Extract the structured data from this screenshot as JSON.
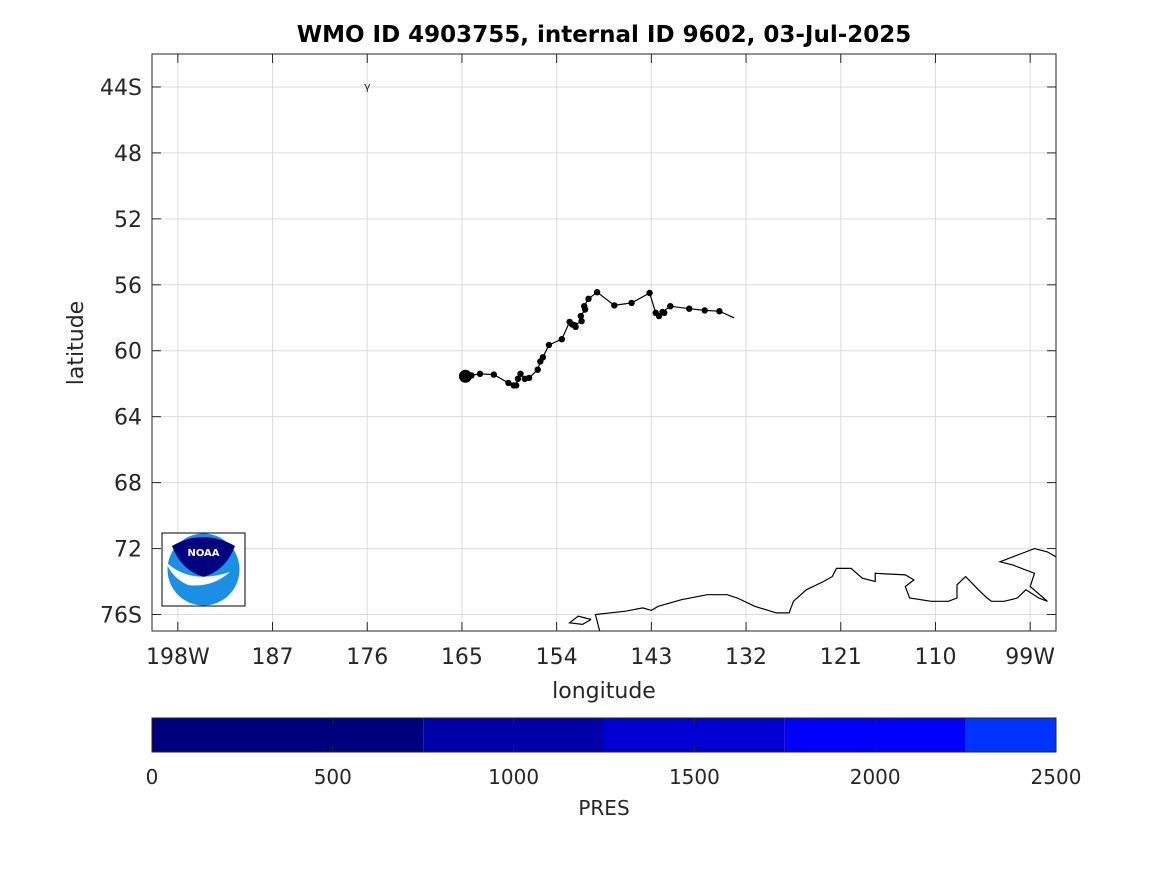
{
  "map": {
    "title": "WMO ID 4903755, internal ID 9602, 03-Jul-2025",
    "xlabel": "longitude",
    "ylabel": "latitude",
    "x_ticks": [
      {
        "value": -198,
        "label": "198W"
      },
      {
        "value": -187,
        "label": "187"
      },
      {
        "value": -176,
        "label": "176"
      },
      {
        "value": -165,
        "label": "165"
      },
      {
        "value": -154,
        "label": "154"
      },
      {
        "value": -143,
        "label": "143"
      },
      {
        "value": -132,
        "label": "132"
      },
      {
        "value": -121,
        "label": "121"
      },
      {
        "value": -110,
        "label": "110"
      },
      {
        "value": -99,
        "label": "99W"
      }
    ],
    "y_ticks": [
      {
        "value": -44,
        "label": "44S"
      },
      {
        "value": -48,
        "label": "48"
      },
      {
        "value": -52,
        "label": "52"
      },
      {
        "value": -56,
        "label": "56"
      },
      {
        "value": -60,
        "label": "60"
      },
      {
        "value": -64,
        "label": "64"
      },
      {
        "value": -68,
        "label": "68"
      },
      {
        "value": -72,
        "label": "72"
      },
      {
        "value": -76,
        "label": "76S"
      }
    ],
    "xlim": [
      -201,
      -96
    ],
    "ylim": [
      -77,
      -42
    ],
    "grid": true,
    "logo_text": "NOAA",
    "track_color": "#000000",
    "coast_color": "#000000"
  },
  "colorbar": {
    "label": "PRES",
    "ticks": [
      {
        "value": 0,
        "label": "0"
      },
      {
        "value": 500,
        "label": "500"
      },
      {
        "value": 1000,
        "label": "1000"
      },
      {
        "value": 1500,
        "label": "1500"
      },
      {
        "value": 2000,
        "label": "2000"
      },
      {
        "value": 2500,
        "label": "2500"
      }
    ],
    "range": [
      0,
      2500
    ],
    "segments": [
      {
        "from": 0,
        "to": 750,
        "color": "#00007f"
      },
      {
        "from": 750,
        "to": 1250,
        "color": "#0000a8"
      },
      {
        "from": 1250,
        "to": 1750,
        "color": "#0000d2"
      },
      {
        "from": 1750,
        "to": 2250,
        "color": "#0000fc"
      },
      {
        "from": 2250,
        "to": 2500,
        "color": "#0033ff"
      }
    ]
  },
  "chart_data": {
    "type": "scatter",
    "title": "WMO ID 4903755, internal ID 9602, 03-Jul-2025",
    "xlabel": "longitude",
    "ylabel": "latitude",
    "xlim": [
      -201,
      -96
    ],
    "ylim": [
      -77,
      -42
    ],
    "grid": true,
    "track": {
      "lon": [
        -164.6,
        -163.9,
        -162.9,
        -161.3,
        -159.6,
        -159.0,
        -158.7,
        -158.5,
        -158.2,
        -157.7,
        -157.2,
        -156.2,
        -155.9,
        -155.6,
        -154.9,
        -153.4,
        -152.5,
        -152.2,
        -151.8,
        -151.9,
        -151.1,
        -151.2,
        -150.7,
        -150.8,
        -150.3,
        -149.3,
        -147.3,
        -145.3,
        -143.2,
        -142.5,
        -142.1,
        -141.5,
        -141.7,
        -140.8,
        -138.6,
        -136.8,
        -135.1,
        -133.4
      ],
      "lat": [
        -61.55,
        -61.5,
        -61.4,
        -61.45,
        -61.95,
        -62.1,
        -62.1,
        -61.7,
        -61.4,
        -61.7,
        -61.65,
        -61.15,
        -60.65,
        -60.4,
        -59.65,
        -59.3,
        -58.25,
        -58.4,
        -58.55,
        -58.45,
        -58.2,
        -57.9,
        -57.5,
        -57.3,
        -56.85,
        -56.45,
        -57.25,
        -57.1,
        -56.5,
        -57.7,
        -57.9,
        -57.7,
        -57.65,
        -57.3,
        -57.45,
        -57.55,
        -57.6,
        -58.0
      ],
      "start": {
        "lon": -164.6,
        "lat": -61.55
      },
      "end_has_marker": false
    },
    "outlier": {
      "lon": -176.0,
      "lat": -44.0,
      "symbol": "γ"
    },
    "coastline": [
      [
        [
          -149.0,
          -77.0
        ],
        [
          -149.5,
          -76.0
        ],
        [
          -146.0,
          -75.8
        ],
        [
          -144.0,
          -75.6
        ],
        [
          -143.0,
          -75.75
        ],
        [
          -142.2,
          -75.5
        ],
        [
          -139.5,
          -75.1
        ],
        [
          -136.5,
          -74.8
        ],
        [
          -134.2,
          -74.8
        ],
        [
          -133.0,
          -75.0
        ],
        [
          -131.0,
          -75.5
        ],
        [
          -128.5,
          -75.9
        ],
        [
          -127.0,
          -75.9
        ],
        [
          -126.5,
          -75.2
        ],
        [
          -125.0,
          -74.5
        ],
        [
          -123.0,
          -74.0
        ],
        [
          -122.0,
          -73.7
        ],
        [
          -121.5,
          -73.2
        ],
        [
          -119.8,
          -73.2
        ],
        [
          -118.5,
          -73.8
        ],
        [
          -117.0,
          -74.0
        ],
        [
          -117.0,
          -73.5
        ],
        [
          -113.5,
          -73.6
        ],
        [
          -112.5,
          -73.9
        ],
        [
          -113.5,
          -74.3
        ],
        [
          -113.0,
          -75.0
        ],
        [
          -110.5,
          -75.2
        ],
        [
          -108.5,
          -75.2
        ],
        [
          -107.5,
          -75.0
        ],
        [
          -107.5,
          -74.2
        ],
        [
          -106.5,
          -73.7
        ],
        [
          -105.0,
          -74.5
        ],
        [
          -104.0,
          -75.0
        ],
        [
          -103.5,
          -75.2
        ],
        [
          -102.0,
          -75.2
        ],
        [
          -100.5,
          -75.0
        ],
        [
          -99.5,
          -74.5
        ],
        [
          -98.0,
          -75.0
        ],
        [
          -97.0,
          -75.2
        ],
        [
          -99.0,
          -74.3
        ],
        [
          -98.5,
          -73.5
        ],
        [
          -101.0,
          -73.0
        ],
        [
          -102.5,
          -72.8
        ],
        [
          -100.0,
          -72.3
        ],
        [
          -98.5,
          -72.0
        ],
        [
          -97.0,
          -72.2
        ],
        [
          -96.0,
          -72.5
        ]
      ]
    ]
  }
}
